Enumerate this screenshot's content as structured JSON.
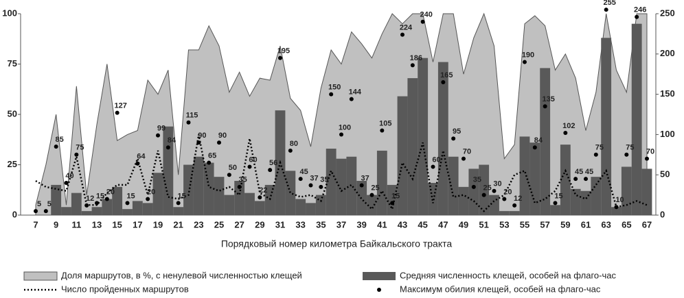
{
  "chart_data": {
    "type": "combo",
    "xlabel": "Порядковый номер километра Байкальского тракта",
    "categories": [
      7,
      null,
      9,
      null,
      11,
      null,
      13,
      null,
      15,
      null,
      17,
      null,
      19,
      null,
      21,
      null,
      23,
      null,
      25,
      null,
      27,
      null,
      29,
      null,
      31,
      null,
      33,
      null,
      35,
      null,
      37,
      null,
      39,
      null,
      41,
      null,
      43,
      null,
      45,
      null,
      47,
      null,
      49,
      null,
      51,
      null,
      53,
      null,
      55,
      null,
      57,
      null,
      59,
      null,
      61,
      null,
      63,
      null,
      65,
      null,
      67
    ],
    "ylim": [
      0,
      100
    ],
    "yticks": [
      0,
      25,
      50,
      75,
      100
    ],
    "y2lim": [
      0,
      250
    ],
    "y2ticks": [
      0,
      50,
      100,
      150,
      200,
      250
    ],
    "grid": false,
    "series": [
      {
        "name": "Доля маршрутов, в %, с ненулевой численностью клещей",
        "type": "area",
        "color": "#c0c0c0",
        "values": [
          5,
          25,
          50,
          5,
          64,
          10,
          45,
          75,
          37,
          40,
          42,
          67,
          60,
          72,
          20,
          82,
          82,
          94,
          84,
          61,
          71,
          59,
          68,
          67,
          84,
          58,
          52,
          34,
          63,
          82,
          75,
          91,
          85,
          78,
          90,
          100,
          95,
          100,
          100,
          76,
          100,
          100,
          70,
          88,
          100,
          84,
          28,
          35,
          95,
          99,
          94,
          72,
          80,
          68,
          42,
          61,
          100,
          72,
          61,
          100,
          100
        ]
      },
      {
        "name": "Средняя численность клещей, особей на флаго-час",
        "type": "bar",
        "color": "#595959",
        "values": [
          0,
          0,
          15,
          4,
          11,
          2,
          4,
          8,
          14,
          3,
          7,
          6,
          21,
          44,
          4,
          25,
          29,
          26,
          19,
          10,
          17,
          11,
          7,
          15,
          52,
          22,
          8,
          6,
          10,
          33,
          28,
          29,
          17,
          10,
          32,
          15,
          59,
          68,
          78,
          16,
          76,
          29,
          14,
          23,
          25,
          10,
          2,
          2,
          39,
          36,
          73,
          5,
          35,
          13,
          12,
          19,
          88,
          4,
          24,
          95,
          23
        ]
      },
      {
        "name": "Число пройденных маршрутов",
        "type": "line",
        "color": "#000000",
        "values": [
          17,
          14,
          13,
          12,
          29,
          5,
          5,
          11,
          15,
          15,
          28,
          10,
          32,
          9,
          8,
          10,
          40,
          14,
          12,
          14,
          10,
          38,
          11,
          8,
          26,
          11,
          9,
          10,
          7,
          22,
          12,
          15,
          8,
          3,
          12,
          3,
          26,
          18,
          36,
          6,
          32,
          9,
          10,
          7,
          2,
          7,
          10,
          20,
          22,
          6,
          8,
          12,
          22,
          10,
          8,
          15,
          22,
          4,
          5,
          7,
          5
        ]
      },
      {
        "name": "Максимум обилия клещей, особей на флаго-час",
        "type": "scatter",
        "color": "#000000",
        "axis": "y2",
        "values": [
          5,
          5,
          85,
          40,
          75,
          12,
          15,
          20,
          127,
          15,
          64,
          20,
          99,
          84,
          15,
          115,
          90,
          65,
          90,
          50,
          35,
          60,
          22,
          56,
          195,
          80,
          45,
          37,
          35,
          150,
          100,
          144,
          37,
          25,
          105,
          15,
          224,
          186,
          240,
          60,
          165,
          95,
          70,
          35,
          25,
          30,
          20,
          12,
          190,
          84,
          135,
          15,
          102,
          45,
          45,
          75,
          255,
          10,
          75,
          246,
          70
        ]
      }
    ]
  }
}
